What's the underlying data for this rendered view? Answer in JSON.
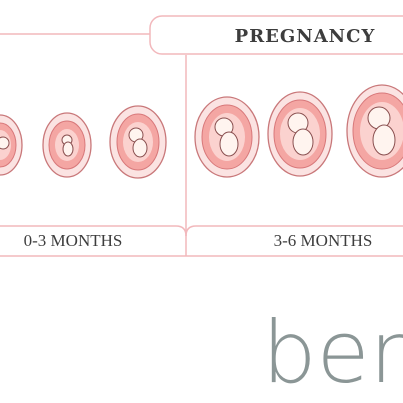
{
  "header": {
    "title": "PREGNANCY"
  },
  "stages": [
    {
      "label": "0-3 MONTHS"
    },
    {
      "label": "3-6 MONTHS"
    }
  ],
  "logo": "ben"
}
